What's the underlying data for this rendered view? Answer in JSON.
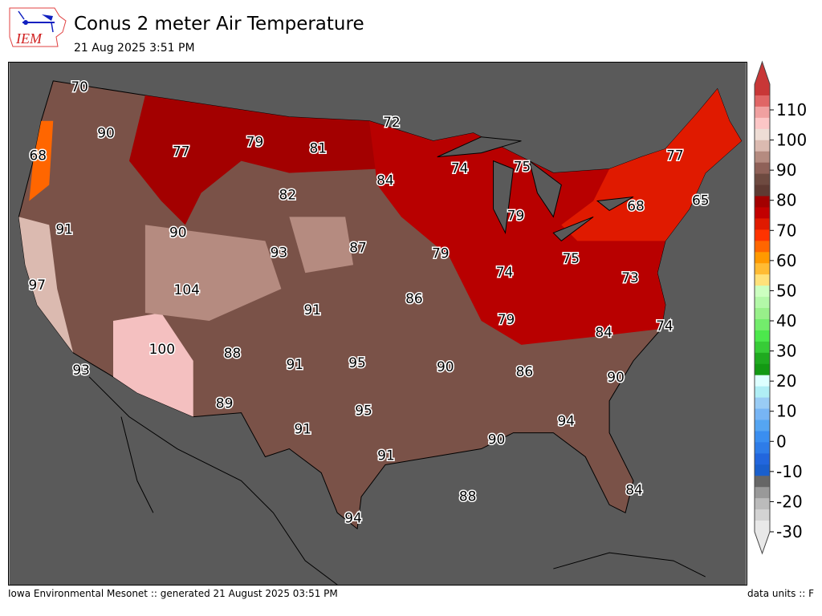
{
  "header": {
    "logo_text": "IEM",
    "title": "Conus 2 meter Air Temperature",
    "subtitle": "21 Aug 2025 3:51 PM"
  },
  "footer": {
    "left": "Iowa Environmental Mesonet :: generated 21 August 2025 03:51 PM",
    "right": "data units :: F"
  },
  "colorbar": {
    "units": "F",
    "ticks": [
      "110",
      "100",
      "90",
      "80",
      "70",
      "60",
      "50",
      "40",
      "30",
      "20",
      "10",
      "0",
      "-10",
      "-20",
      "-30"
    ],
    "colors_top_to_bottom": [
      "#c83737",
      "#e06666",
      "#f0a0a0",
      "#fcc6c6",
      "#eeddd5",
      "#dbbab0",
      "#b58b80",
      "#8f6158",
      "#6e4a40",
      "#5f3a32",
      "#a30000",
      "#c20000",
      "#e01a00",
      "#ff3300",
      "#ff6600",
      "#ff9900",
      "#ffbb33",
      "#ffe17a",
      "#ccffc0",
      "#b3f8a8",
      "#98f08a",
      "#73ec6c",
      "#4ce84c",
      "#37cc37",
      "#1faa1f",
      "#139913",
      "#ddffff",
      "#b0eef5",
      "#99ccf5",
      "#77b5f5",
      "#55a5f2",
      "#3a8ef0",
      "#2e7ce8",
      "#2266dd",
      "#1a5fcc",
      "#666666",
      "#999999",
      "#bbbbbb",
      "#d3d3d3",
      "#e8e8e8"
    ]
  },
  "map": {
    "background": "#5a5a5a",
    "station_labels": [
      "70",
      "90",
      "68",
      "77",
      "79",
      "81",
      "72",
      "84",
      "82",
      "74",
      "75",
      "77",
      "68",
      "65",
      "91",
      "90",
      "93",
      "87",
      "79",
      "74",
      "79",
      "75",
      "73",
      "97",
      "104",
      "91",
      "86",
      "79",
      "84",
      "74",
      "100",
      "88",
      "91",
      "95",
      "90",
      "86",
      "90",
      "93",
      "89",
      "95",
      "94",
      "91",
      "90",
      "91",
      "88",
      "84",
      "94"
    ]
  }
}
